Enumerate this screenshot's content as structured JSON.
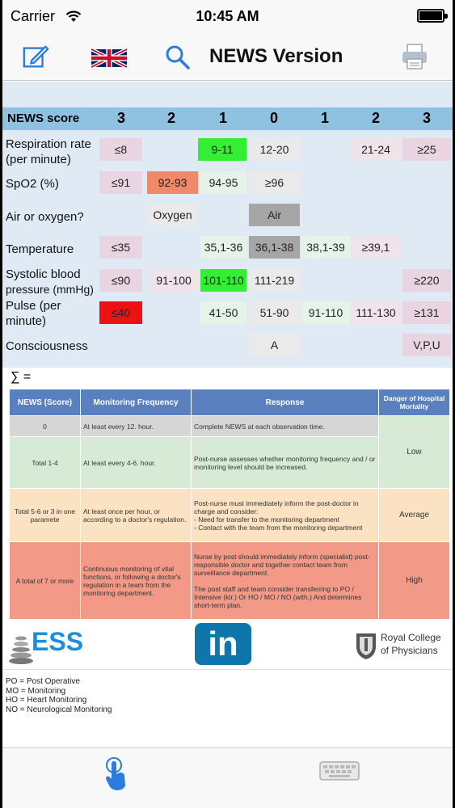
{
  "status_bar": {
    "carrier": "Carrier",
    "time": "10:45 AM"
  },
  "nav": {
    "title": "NEWS Version"
  },
  "score_header": {
    "label": "NEWS score",
    "scores": [
      "3",
      "2",
      "1",
      "0",
      "1",
      "2",
      "3"
    ]
  },
  "rows": [
    {
      "label_lines": [
        "Respiration rate",
        "(per minute)"
      ],
      "cells": [
        "≤8",
        "",
        "9-11",
        "12-20",
        "",
        "21-24",
        "≥25"
      ]
    },
    {
      "label_lines": [
        "SpO2 (%)"
      ],
      "cells": [
        "≤91",
        "92-93",
        "94-95",
        "≥96",
        "",
        "",
        ""
      ]
    },
    {
      "label_lines": [
        "Air or oxygen?"
      ],
      "cells": [
        "",
        "Oxygen",
        "",
        "Air",
        "",
        "",
        ""
      ]
    },
    {
      "label_lines": [
        "Temperature"
      ],
      "cells": [
        "≤35",
        "",
        "35,1-36",
        "36,1-38",
        "38,1-39",
        "≥39,1",
        ""
      ]
    },
    {
      "label_lines": [
        "Systolic blood",
        "pressure (mmHg)"
      ],
      "cells": [
        "≤90",
        "91-100",
        "101-110",
        "111-219",
        "",
        "",
        "≥220"
      ]
    },
    {
      "label_lines": [
        "Pulse (per",
        "minute)"
      ],
      "cells": [
        "≤40",
        "",
        "41-50",
        "51-90",
        "91-110",
        "111-130",
        "≥131"
      ]
    },
    {
      "label_lines": [
        "Consciousness"
      ],
      "cells": [
        "",
        "",
        "",
        "A",
        "",
        "",
        "V,P,U"
      ]
    }
  ],
  "colors": {
    "header_blue": "#8fc2e0",
    "score3": "#e9d4e2",
    "score2": "#f1e3ea",
    "score1": "#e6f3e8",
    "score0": "#eaeaea",
    "selected_green": "#33ee33",
    "selected_orange": "#f0896a",
    "selected_gray": "#a6a6a6",
    "selected_red": "#ee1111",
    "low": "#d7ead6",
    "average": "#fbe2c2",
    "high": "#f29a87"
  },
  "sum_label": "∑ =",
  "response_table": {
    "headers": [
      "NEWS (Score)",
      "Monitoring Frequency",
      "Response",
      "Danger of Hospital Mortality"
    ],
    "rows": [
      {
        "score": "0",
        "frequency": "At least every 12. hour.",
        "response": "Complete NEWS at each observation time."
      },
      {
        "score": "Total 1-4",
        "frequency": "At least every 4-6. hour.",
        "response": "Post-nurse assesses whether monitoring frequency and / or monitoring level should be increased."
      },
      {
        "score": "Total 5-6 or 3 in one paramete",
        "frequency": "At least once per hour, or according to a doctor's regulation.",
        "response": "Post-nurse must immediately inform the post-doctor in charge and consider:\n - Need for transfer to the monitoring department\n - Contact with the team from the monitoring department"
      },
      {
        "score": "A total of 7 or more",
        "frequency": "Continuous monitoring of vital functions, or following a doctor's regulation in a team from the monitoring department.",
        "response": "Nurse by post should immediately inform (specialist) post-responsible doctor and together contact team from surveillance department.\n\nThe post staff and team consider transferring to PO / Intensive (kir.) Or HO / MO / NO (with.) And determines short-term plan."
      }
    ],
    "danger": [
      "Low",
      "Average",
      "High"
    ]
  },
  "logos": {
    "ess": "ESS",
    "linkedin": "in",
    "rcp_line1": "Royal College",
    "rcp_line2": "of Physicians"
  },
  "legend": [
    "PO = Post Operative",
    "MO = Monitoring",
    "HO = Heart Monitoring",
    "NO = Neurological Monitoring"
  ],
  "icons": [
    "edit-icon",
    "uk-flag-icon",
    "search-icon",
    "printer-icon",
    "tap-hand-icon",
    "keyboard-icon"
  ]
}
